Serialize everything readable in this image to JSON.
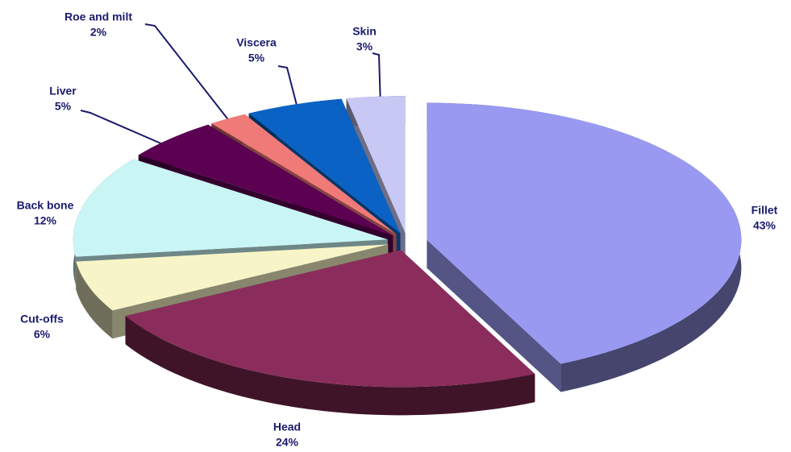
{
  "chart_data": {
    "type": "pie",
    "categories": [
      "Fillet",
      "Head",
      "Cut-offs",
      "Back bone",
      "Liver",
      "Roe and milt",
      "Viscera",
      "Skin"
    ],
    "values": [
      43,
      24,
      6,
      12,
      5,
      2,
      5,
      3
    ],
    "value_labels": [
      "43%",
      "24%",
      "6%",
      "12%",
      "5%",
      "2%",
      "5%",
      "3%"
    ],
    "colors": [
      "#9999f2",
      "#8b2d5c",
      "#f7f5c8",
      "#c9f5f5",
      "#5c0052",
      "#f07a78",
      "#0a63c4",
      "#c8c8f5"
    ]
  }
}
